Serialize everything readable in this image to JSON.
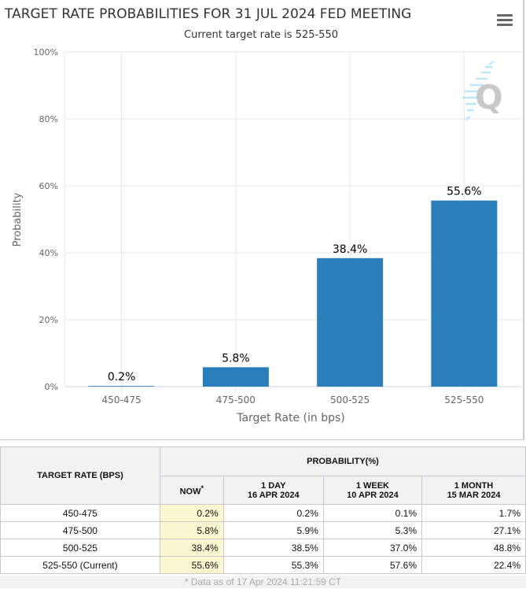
{
  "chart_data": {
    "type": "bar",
    "title": "TARGET RATE PROBABILITIES FOR 31 JUL 2024 FED MEETING",
    "subtitle": "Current target rate is 525-550",
    "xlabel": "Target Rate (in bps)",
    "ylabel": "Probability",
    "categories": [
      "450-475",
      "475-500",
      "500-525",
      "525-550"
    ],
    "values": [
      0.2,
      5.8,
      38.4,
      55.6
    ],
    "data_labels": [
      "0.2%",
      "5.8%",
      "38.4%",
      "55.6%"
    ],
    "ylim": [
      0,
      100
    ],
    "yticks": [
      "0%",
      "20%",
      "40%",
      "60%",
      "80%",
      "100%"
    ],
    "grid": true,
    "bar_color": "#2a7fba"
  },
  "menu_icon": "hamburger-icon",
  "table": {
    "header_rate": "TARGET RATE (BPS)",
    "header_prob": "PROBABILITY(%)",
    "cols": [
      {
        "l1": "NOW",
        "l2": "",
        "star": "*"
      },
      {
        "l1": "1 DAY",
        "l2": "16 APR 2024"
      },
      {
        "l1": "1 WEEK",
        "l2": "10 APR 2024"
      },
      {
        "l1": "1 MONTH",
        "l2": "15 MAR 2024"
      }
    ],
    "rows": [
      {
        "rate": "450-475",
        "vals": [
          "0.2%",
          "0.2%",
          "0.1%",
          "1.7%"
        ]
      },
      {
        "rate": "475-500",
        "vals": [
          "5.8%",
          "5.9%",
          "5.3%",
          "27.1%"
        ]
      },
      {
        "rate": "500-525",
        "vals": [
          "38.4%",
          "38.5%",
          "37.0%",
          "48.8%"
        ]
      },
      {
        "rate": "525-550 (Current)",
        "vals": [
          "55.6%",
          "55.3%",
          "57.6%",
          "22.4%"
        ]
      }
    ],
    "footnote": "* Data as of 17 Apr 2024 11:21:59 CT"
  }
}
